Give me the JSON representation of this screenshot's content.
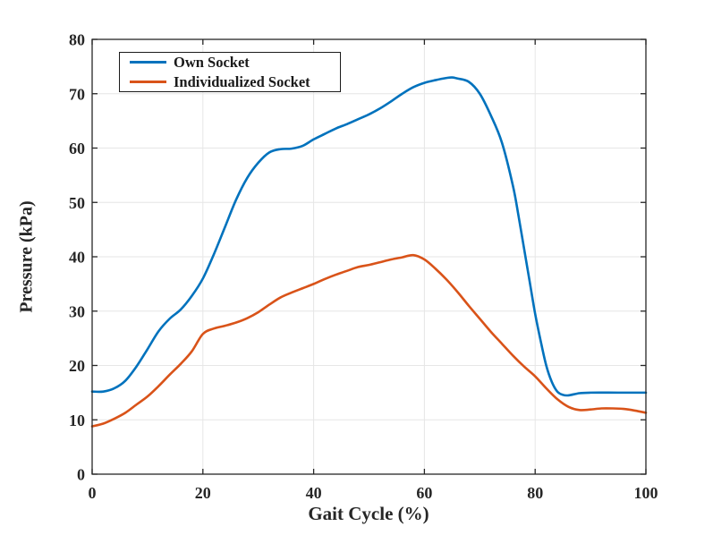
{
  "figure": {
    "background": "#ffffff",
    "axes_color": "#262626",
    "grid_color": "#e6e6e6",
    "tick_direction": "in",
    "box": true
  },
  "chart_data": {
    "type": "line",
    "title": "",
    "xlabel": "Gait Cycle (%)",
    "ylabel": "Pressure (kPa)",
    "xlim": [
      0,
      100
    ],
    "ylim": [
      0,
      80
    ],
    "xticks": [
      0,
      20,
      40,
      60,
      80,
      100
    ],
    "yticks": [
      0,
      10,
      20,
      30,
      40,
      50,
      60,
      70,
      80
    ],
    "xtick_labels": [
      "0",
      "20",
      "40",
      "60",
      "80",
      "100"
    ],
    "ytick_labels": [
      "0",
      "10",
      "20",
      "30",
      "40",
      "50",
      "60",
      "70",
      "80"
    ],
    "grid": true,
    "legend_position": "top-left",
    "series": [
      {
        "name": "Own Socket",
        "color": "#0072BD",
        "line_width": 2.6,
        "points": [
          [
            0,
            15.2
          ],
          [
            2,
            15.2
          ],
          [
            4,
            15.8
          ],
          [
            6,
            17.2
          ],
          [
            8,
            19.8
          ],
          [
            10,
            23.0
          ],
          [
            12,
            26.3
          ],
          [
            14,
            28.6
          ],
          [
            16,
            30.3
          ],
          [
            18,
            32.8
          ],
          [
            20,
            36.0
          ],
          [
            22,
            40.5
          ],
          [
            24,
            45.5
          ],
          [
            26,
            50.5
          ],
          [
            28,
            54.5
          ],
          [
            30,
            57.3
          ],
          [
            32,
            59.2
          ],
          [
            34,
            59.8
          ],
          [
            36,
            59.9
          ],
          [
            38,
            60.4
          ],
          [
            40,
            61.6
          ],
          [
            42,
            62.6
          ],
          [
            44,
            63.6
          ],
          [
            46,
            64.4
          ],
          [
            48,
            65.3
          ],
          [
            50,
            66.2
          ],
          [
            52,
            67.3
          ],
          [
            54,
            68.6
          ],
          [
            56,
            70.0
          ],
          [
            58,
            71.2
          ],
          [
            60,
            72.0
          ],
          [
            62,
            72.5
          ],
          [
            64,
            72.9
          ],
          [
            65,
            73.0
          ],
          [
            66,
            72.8
          ],
          [
            68,
            72.2
          ],
          [
            70,
            70.0
          ],
          [
            72,
            66.0
          ],
          [
            74,
            61.0
          ],
          [
            76,
            53.0
          ],
          [
            77,
            47.5
          ],
          [
            78,
            41.5
          ],
          [
            79,
            35.5
          ],
          [
            80,
            29.5
          ],
          [
            81,
            24.5
          ],
          [
            82,
            20.0
          ],
          [
            83,
            17.0
          ],
          [
            84,
            15.2
          ],
          [
            85,
            14.6
          ],
          [
            86,
            14.5
          ],
          [
            88,
            14.9
          ],
          [
            90,
            15.0
          ],
          [
            95,
            15.0
          ],
          [
            100,
            15.0
          ]
        ]
      },
      {
        "name": "Individualized Socket",
        "color": "#D95319",
        "line_width": 2.6,
        "points": [
          [
            0,
            8.8
          ],
          [
            2,
            9.3
          ],
          [
            4,
            10.2
          ],
          [
            6,
            11.3
          ],
          [
            8,
            12.8
          ],
          [
            10,
            14.3
          ],
          [
            12,
            16.2
          ],
          [
            14,
            18.3
          ],
          [
            16,
            20.3
          ],
          [
            18,
            22.6
          ],
          [
            20,
            25.8
          ],
          [
            22,
            26.8
          ],
          [
            24,
            27.3
          ],
          [
            26,
            27.9
          ],
          [
            28,
            28.7
          ],
          [
            30,
            29.8
          ],
          [
            32,
            31.2
          ],
          [
            34,
            32.5
          ],
          [
            36,
            33.4
          ],
          [
            38,
            34.2
          ],
          [
            40,
            35.0
          ],
          [
            42,
            35.9
          ],
          [
            44,
            36.7
          ],
          [
            46,
            37.4
          ],
          [
            48,
            38.1
          ],
          [
            50,
            38.5
          ],
          [
            52,
            39.0
          ],
          [
            54,
            39.5
          ],
          [
            56,
            39.9
          ],
          [
            58,
            40.3
          ],
          [
            60,
            39.5
          ],
          [
            62,
            37.8
          ],
          [
            64,
            35.8
          ],
          [
            66,
            33.5
          ],
          [
            68,
            31.0
          ],
          [
            70,
            28.6
          ],
          [
            72,
            26.2
          ],
          [
            74,
            24.0
          ],
          [
            76,
            21.8
          ],
          [
            78,
            19.8
          ],
          [
            80,
            18.0
          ],
          [
            82,
            15.8
          ],
          [
            84,
            13.8
          ],
          [
            86,
            12.4
          ],
          [
            88,
            11.8
          ],
          [
            90,
            11.9
          ],
          [
            92,
            12.1
          ],
          [
            94,
            12.1
          ],
          [
            96,
            12.0
          ],
          [
            98,
            11.7
          ],
          [
            100,
            11.3
          ]
        ]
      }
    ]
  }
}
